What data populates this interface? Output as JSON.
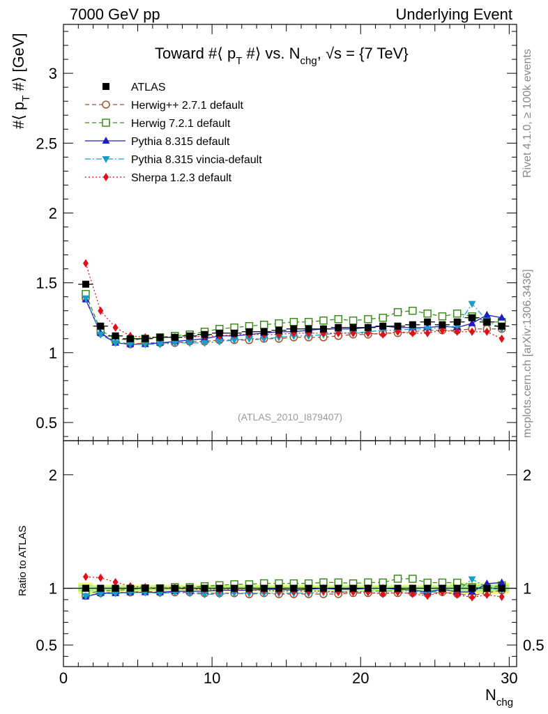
{
  "header": {
    "left": "7000 GeV pp",
    "right": "Underlying Event"
  },
  "side_text": {
    "rivet": "Rivet 4.1.0, ≥ 100k events",
    "mcplots": "mcplots.cern.ch [arXiv:1306.3436]"
  },
  "reference": "(ATLAS_2010_I879407)",
  "chart_data": {
    "type": "line",
    "title": {
      "pre": "Toward #⟨ p",
      "pt_sub": "T",
      "mid": " #⟩ vs. N",
      "n_sub": "chg",
      "post": ", √s = {7 TeV}"
    },
    "ylabel": {
      "pre": "#⟨ p",
      "sub": "T",
      "post": " #⟩ [GeV]"
    },
    "xlabel": {
      "main": "N",
      "sub": "chg"
    },
    "ratio_ylabel": "Ratio to ATLAS",
    "xlim": [
      0,
      30.5
    ],
    "ylim": [
      0.37,
      3.35
    ],
    "ratio_ylim": [
      0.31,
      2.3
    ],
    "x_ticks": [
      "0",
      "10",
      "20",
      "30"
    ],
    "y_ticks": [
      "0.5",
      "1",
      "1.5",
      "2",
      "2.5",
      "3"
    ],
    "ratio_ticks": [
      "0.5",
      "1",
      "2"
    ],
    "x": [
      1.5,
      2.5,
      3.5,
      4.5,
      5.5,
      6.5,
      7.5,
      8.5,
      9.5,
      10.5,
      11.5,
      12.5,
      13.5,
      14.5,
      15.5,
      16.5,
      17.5,
      18.5,
      19.5,
      20.5,
      21.5,
      22.5,
      23.5,
      24.5,
      25.5,
      26.5,
      27.5,
      28.5,
      29.5
    ],
    "series": [
      {
        "name": "ATLAS",
        "color": "#000000",
        "style": "data",
        "marker": "square-filled",
        "values": [
          1.49,
          1.19,
          1.12,
          1.1,
          1.1,
          1.11,
          1.11,
          1.12,
          1.13,
          1.14,
          1.14,
          1.15,
          1.15,
          1.16,
          1.17,
          1.17,
          1.17,
          1.18,
          1.18,
          1.18,
          1.19,
          1.19,
          1.2,
          1.22,
          1.2,
          1.22,
          1.25,
          1.22,
          1.19
        ]
      },
      {
        "name": "Herwig++ 2.7.1 default",
        "color": "#a0522d",
        "dash": "6,4",
        "marker": "circle-open",
        "values": [
          1.39,
          1.14,
          1.08,
          1.06,
          1.07,
          1.07,
          1.07,
          1.08,
          1.08,
          1.09,
          1.09,
          1.09,
          1.1,
          1.1,
          1.11,
          1.11,
          1.11,
          1.12,
          1.13,
          1.13,
          1.14,
          1.14,
          1.15,
          1.16,
          1.16,
          1.16,
          1.17,
          1.17,
          1.17
        ]
      },
      {
        "name": "Herwig 7.2.1 default",
        "color": "#3a8a1c",
        "dash": "6,4",
        "marker": "square-open",
        "values": [
          1.42,
          1.16,
          1.1,
          1.09,
          1.1,
          1.11,
          1.12,
          1.13,
          1.15,
          1.17,
          1.18,
          1.19,
          1.2,
          1.21,
          1.22,
          1.22,
          1.23,
          1.24,
          1.23,
          1.24,
          1.25,
          1.29,
          1.3,
          1.28,
          1.26,
          1.28,
          1.26,
          1.22,
          1.22
        ]
      },
      {
        "name": "Pythia 8.315 default",
        "color": "#1c1cc8",
        "dash": "",
        "marker": "triangle-up",
        "values": [
          1.38,
          1.14,
          1.07,
          1.06,
          1.06,
          1.07,
          1.08,
          1.09,
          1.1,
          1.12,
          1.12,
          1.13,
          1.14,
          1.15,
          1.15,
          1.16,
          1.17,
          1.17,
          1.17,
          1.18,
          1.19,
          1.18,
          1.18,
          1.18,
          1.19,
          1.18,
          1.21,
          1.27,
          1.25
        ]
      },
      {
        "name": "Pythia 8.315 vincia-default",
        "color": "#1a9ec8",
        "dash": "8,3,2,3",
        "marker": "triangle-down",
        "values": [
          1.39,
          1.13,
          1.07,
          1.06,
          1.06,
          1.06,
          1.07,
          1.07,
          1.07,
          1.08,
          1.09,
          1.1,
          1.1,
          1.11,
          1.12,
          1.12,
          1.13,
          1.14,
          1.14,
          1.15,
          1.16,
          1.16,
          1.17,
          1.17,
          1.18,
          1.19,
          1.35,
          1.23,
          1.17
        ]
      },
      {
        "name": "Sherpa 1.2.3 default",
        "color": "#e0101a",
        "dash": "2,3",
        "marker": "diamond",
        "values": [
          1.64,
          1.3,
          1.18,
          1.12,
          1.11,
          1.11,
          1.11,
          1.11,
          1.12,
          1.12,
          1.13,
          1.13,
          1.13,
          1.13,
          1.14,
          1.14,
          1.14,
          1.14,
          1.14,
          1.14,
          1.13,
          1.15,
          1.14,
          1.14,
          1.16,
          1.15,
          1.15,
          1.15,
          1.1
        ]
      }
    ]
  }
}
